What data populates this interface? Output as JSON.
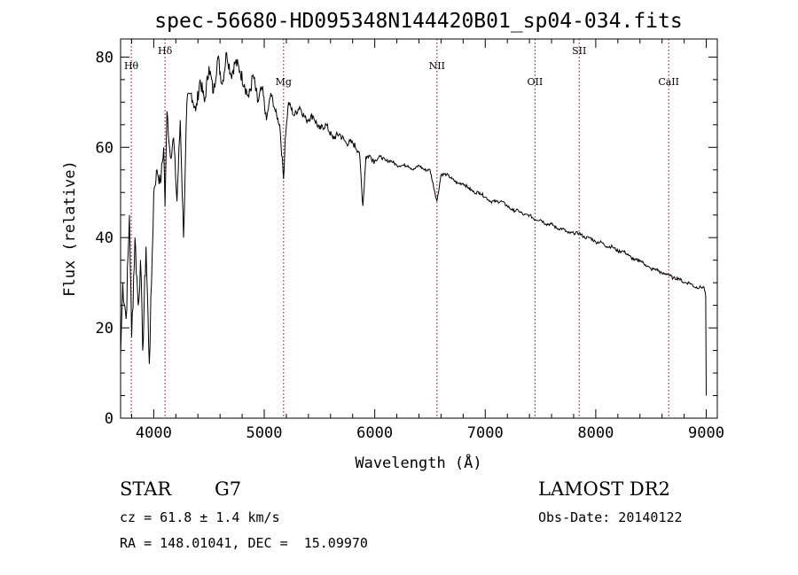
{
  "chart_data": {
    "type": "line",
    "title": "spec-56680-HD095348N144420B01_sp04-034.fits",
    "xlabel": "Wavelength (Å)",
    "ylabel": "Flux (relative)",
    "xlim": [
      3700,
      9100
    ],
    "ylim": [
      0,
      84
    ],
    "x_ticks": [
      4000,
      5000,
      6000,
      7000,
      8000,
      9000
    ],
    "y_ticks": [
      0,
      20,
      40,
      60,
      80
    ],
    "grid": false,
    "series": [
      {
        "x": [
          3700,
          3720,
          3750,
          3780,
          3800,
          3830,
          3860,
          3880,
          3900,
          3930,
          3960,
          3980,
          4000,
          4030,
          4060,
          4090,
          4102,
          4120,
          4150,
          4180,
          4210,
          4240,
          4270,
          4300,
          4340,
          4380,
          4420,
          4460,
          4500,
          4540,
          4580,
          4620,
          4660,
          4700,
          4740,
          4780,
          4820,
          4860,
          4900,
          4940,
          4980,
          5020,
          5060,
          5100,
          5140,
          5175,
          5190,
          5220,
          5270,
          5320,
          5380,
          5440,
          5500,
          5560,
          5620,
          5680,
          5740,
          5800,
          5860,
          5893,
          5920,
          5960,
          6000,
          6050,
          6100,
          6150,
          6200,
          6250,
          6300,
          6350,
          6400,
          6450,
          6500,
          6563,
          6600,
          6650,
          6700,
          6750,
          6800,
          6850,
          6900,
          6950,
          7000,
          7050,
          7100,
          7150,
          7200,
          7250,
          7300,
          7350,
          7400,
          7450,
          7500,
          7550,
          7600,
          7650,
          7700,
          7750,
          7800,
          7850,
          7900,
          7950,
          8000,
          8050,
          8100,
          8150,
          8200,
          8250,
          8300,
          8350,
          8400,
          8450,
          8500,
          8550,
          8600,
          8650,
          8700,
          8750,
          8800,
          8850,
          8900,
          8950,
          8980,
          8995,
          9000
        ],
        "y": [
          14,
          30,
          22,
          45,
          18,
          40,
          25,
          35,
          15,
          38,
          12,
          30,
          50,
          55,
          52,
          60,
          47,
          68,
          58,
          62,
          48,
          66,
          40,
          70,
          72,
          68,
          75,
          70,
          78,
          72,
          80,
          74,
          81,
          76,
          79,
          77,
          74,
          71,
          76,
          70,
          73,
          66,
          72,
          68,
          65,
          53,
          62,
          70,
          67,
          69,
          66,
          67,
          64,
          65,
          62,
          63,
          61,
          61,
          59,
          47,
          58,
          58,
          57,
          58,
          57,
          57,
          56,
          56,
          56,
          55,
          56,
          55,
          55,
          48,
          54,
          54,
          53,
          52,
          52,
          51,
          50,
          50,
          49,
          48,
          48,
          48,
          47,
          46,
          46,
          45,
          45,
          44,
          44,
          43,
          43,
          42,
          42,
          41,
          41,
          41,
          40,
          40,
          39,
          39,
          38,
          38,
          37,
          37,
          36,
          35,
          35,
          34,
          33,
          33,
          32,
          32,
          31,
          31,
          30,
          30,
          29,
          29,
          29,
          27,
          5
        ]
      }
    ],
    "lines": [
      {
        "label": "Hθ",
        "x": 3797,
        "tier": 2
      },
      {
        "label": "Hδ",
        "x": 4102,
        "tier": 1
      },
      {
        "label": "Mg",
        "x": 5175,
        "tier": 3
      },
      {
        "label": "NII",
        "x": 6563,
        "tier": 2
      },
      {
        "label": "OII",
        "x": 7450,
        "tier": 3
      },
      {
        "label": "SII",
        "x": 7850,
        "tier": 1
      },
      {
        "label": "CaII",
        "x": 8660,
        "tier": 3
      }
    ],
    "line_color": "#8b0000"
  },
  "info": {
    "class": "STAR",
    "subclass": "G7",
    "survey": "LAMOST DR2",
    "redshift": "cz = 61.8 ± 1.4 km/s",
    "obs_date": "Obs-Date: 20140122",
    "coords": "RA = 148.01041, DEC =  15.09970"
  }
}
